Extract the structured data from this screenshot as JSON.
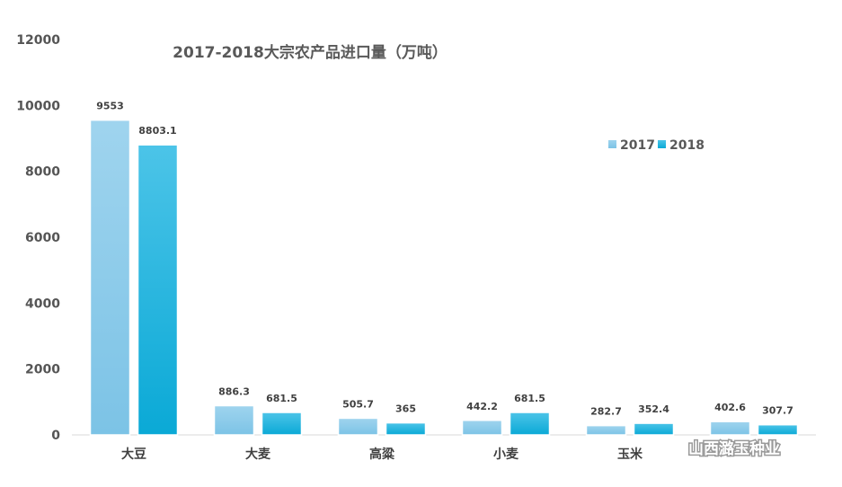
{
  "chart_data": {
    "type": "bar",
    "title": "2017-2018大宗农产品进口量（万吨）",
    "categories": [
      "大豆",
      "大麦",
      "高粱",
      "小麦",
      "玉米",
      ""
    ],
    "series": [
      {
        "name": "2017",
        "values": [
          9553,
          886.3,
          505.7,
          442.2,
          282.7,
          402.6
        ],
        "color": "#8ecae6"
      },
      {
        "name": "2018",
        "values": [
          8803.1,
          681.5,
          365,
          681.5,
          352.4,
          307.7
        ],
        "color": "#12b3dd"
      }
    ],
    "data_labels": [
      [
        "9553",
        "886.3",
        "505.7",
        "442.2",
        "282.7",
        "402.6"
      ],
      [
        "8803.1",
        "681.5",
        "365",
        "681.5",
        "352.4",
        "307.7"
      ]
    ],
    "ylim": [
      0,
      12000
    ],
    "yticks": [
      "0",
      "2000",
      "4000",
      "6000",
      "8000",
      "10000",
      "12000"
    ],
    "xlabel": "",
    "ylabel": "",
    "grid": false,
    "legend_position": "top-right"
  },
  "watermark": {
    "text": "山西潞玉种业",
    "icon": "wechat-icon"
  }
}
